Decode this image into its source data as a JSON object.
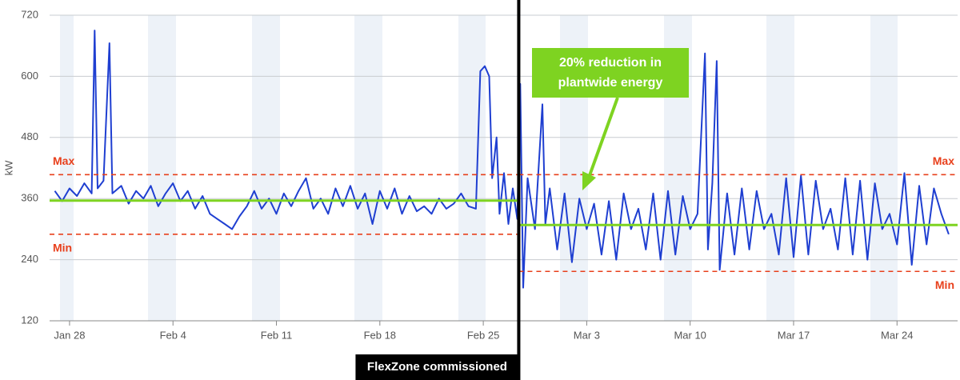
{
  "chart_data": {
    "type": "line",
    "y_label": "kW",
    "ylim": [
      120,
      720
    ],
    "yticks": [
      120,
      240,
      360,
      480,
      600,
      720
    ],
    "xlim": [
      -1.35,
      60.1
    ],
    "xticks": [
      {
        "value": 0,
        "label": "Jan 28"
      },
      {
        "value": 7,
        "label": "Feb 4"
      },
      {
        "value": 14,
        "label": "Feb 11"
      },
      {
        "value": 21,
        "label": "Feb 18"
      },
      {
        "value": 28,
        "label": "Feb 25"
      },
      {
        "value": 35,
        "label": "Mar 3"
      },
      {
        "value": 42,
        "label": "Mar 10"
      },
      {
        "value": 49,
        "label": "Mar 17"
      },
      {
        "value": 56,
        "label": "Mar 24"
      }
    ],
    "grid": true,
    "x": [
      -1,
      -0.5,
      0,
      0.5,
      1,
      1.5,
      1.7,
      1.9,
      2.3,
      2.7,
      2.9,
      3.5,
      4,
      4.5,
      5,
      5.5,
      6,
      6.5,
      7,
      7.5,
      8,
      8.5,
      9,
      9.5,
      10,
      10.5,
      11,
      11.5,
      12,
      12.5,
      13,
      13.5,
      14,
      14.5,
      15,
      15.5,
      16,
      16.5,
      17,
      17.5,
      18,
      18.5,
      19,
      19.5,
      20,
      20.5,
      21,
      21.5,
      22,
      22.5,
      23,
      23.5,
      24,
      24.5,
      25,
      25.5,
      26,
      26.5,
      27,
      27.5,
      27.8,
      28.1,
      28.4,
      28.6,
      28.9,
      29.1,
      29.4,
      29.7,
      30,
      30.3,
      30.5,
      30.7,
      31,
      31.5,
      32,
      32.2,
      32.5,
      33,
      33.5,
      34,
      34.5,
      35,
      35.5,
      36,
      36.5,
      37,
      37.5,
      38,
      38.5,
      39,
      39.5,
      40,
      40.5,
      41,
      41.5,
      42,
      42.5,
      43,
      43.2,
      43.5,
      43.8,
      44,
      44.5,
      45,
      45.5,
      46,
      46.5,
      47,
      47.5,
      48,
      48.5,
      49,
      49.5,
      50,
      50.5,
      51,
      51.5,
      52,
      52.5,
      53,
      53.5,
      54,
      54.5,
      55,
      55.5,
      56,
      56.5,
      57,
      57.5,
      58,
      58.5,
      59,
      59.5
    ],
    "series": [
      {
        "color": "#1f3fd1",
        "values": [
          375,
          355,
          380,
          365,
          390,
          370,
          690,
          380,
          395,
          665,
          370,
          385,
          350,
          375,
          360,
          385,
          345,
          370,
          390,
          355,
          375,
          340,
          365,
          330,
          320,
          310,
          300,
          325,
          345,
          375,
          340,
          360,
          330,
          370,
          345,
          375,
          400,
          340,
          360,
          330,
          380,
          345,
          385,
          340,
          370,
          310,
          375,
          340,
          380,
          330,
          365,
          335,
          345,
          330,
          360,
          340,
          350,
          370,
          345,
          340,
          610,
          620,
          600,
          400,
          480,
          330,
          410,
          310,
          380,
          320,
          585,
          185,
          400,
          300,
          545,
          310,
          380,
          260,
          370,
          235,
          360,
          300,
          350,
          250,
          355,
          240,
          370,
          300,
          340,
          260,
          370,
          240,
          375,
          250,
          365,
          300,
          330,
          645,
          260,
          390,
          630,
          220,
          370,
          250,
          380,
          260,
          375,
          300,
          330,
          250,
          400,
          245,
          405,
          250,
          395,
          300,
          340,
          260,
          400,
          250,
          395,
          240,
          390,
          300,
          330,
          270,
          410,
          230,
          385,
          270,
          380,
          330,
          290
        ]
      }
    ],
    "reference_lines": [
      {
        "label": "Max",
        "value": 407,
        "x": [
          -1.35,
          30.4
        ]
      },
      {
        "label": "Min",
        "value": 290,
        "x": [
          -1.35,
          30.4
        ]
      },
      {
        "label": "Max",
        "value": 407,
        "x": [
          30.4,
          60.1
        ]
      },
      {
        "label": "Min",
        "value": 217,
        "x": [
          30.4,
          60.1
        ]
      }
    ],
    "reference_color": "#e8401c",
    "average_lines": [
      {
        "value": 356,
        "x": [
          -1.35,
          30.4
        ]
      },
      {
        "value": 308,
        "x": [
          30.4,
          60.1
        ]
      }
    ],
    "average_color": "#7ed321",
    "annotations": [
      {
        "text": [
          "20% reduction in",
          "plantwide energy"
        ]
      },
      {
        "text": "FlexZone commissioned",
        "x": 30.4
      }
    ]
  }
}
